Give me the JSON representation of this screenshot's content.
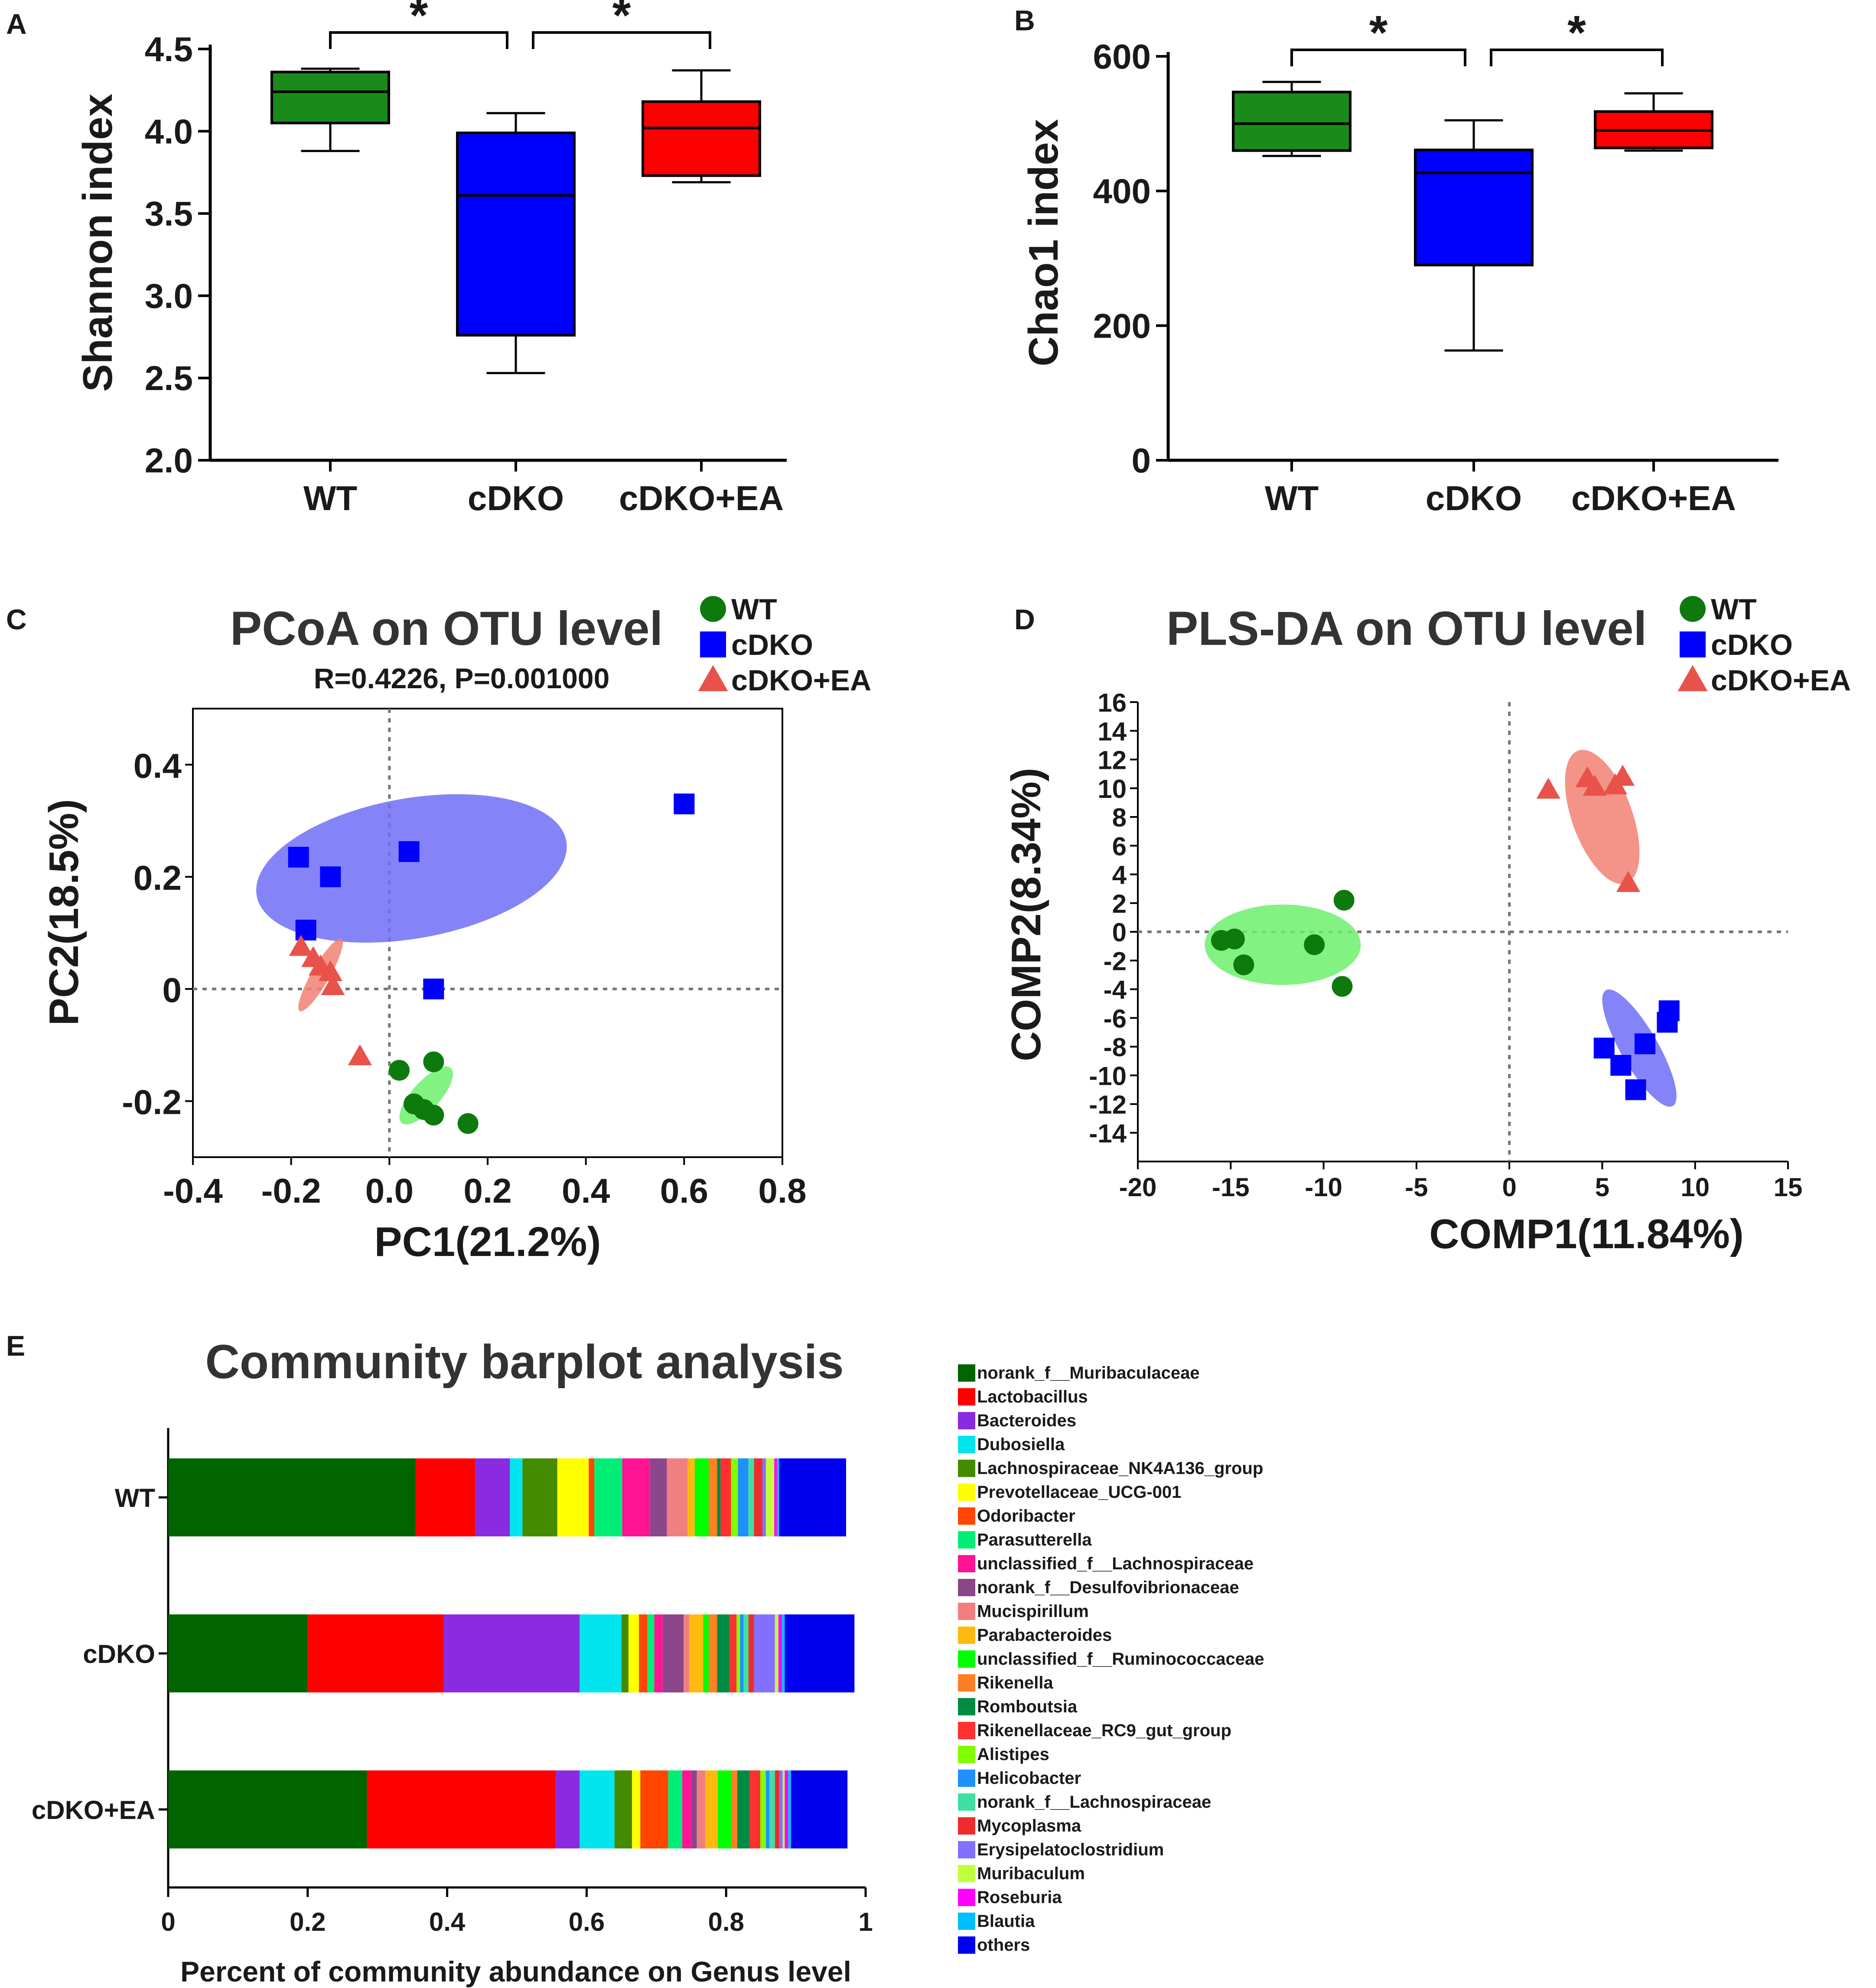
{
  "panels": [
    {
      "letter": "A"
    },
    {
      "letter": "B"
    },
    {
      "letter": "C"
    },
    {
      "letter": "D"
    },
    {
      "letter": "E"
    }
  ],
  "colors": {
    "wt": "#1a8a1a",
    "cdko": "#0000ff",
    "ea": "#ff0000",
    "ea_scatter": "#e8524a",
    "wt_dot": "#0e7a0e",
    "cdko_ellipse": "#6f6ff7",
    "wt_ellipse": "#6cf06c",
    "ea_ellipse": "#f28072"
  },
  "chart_data": [
    {
      "id": "A",
      "type": "box",
      "ylabel": "Shannon index",
      "ylim": [
        2.0,
        4.5
      ],
      "yticks": [
        "2.0",
        "2.5",
        "3.0",
        "3.5",
        "4.0",
        "4.5"
      ],
      "categories": [
        "WT",
        "cDKO",
        "cDKO+EA"
      ],
      "boxes": [
        {
          "name": "WT",
          "min": 3.88,
          "q1": 4.05,
          "median": 4.24,
          "q3": 4.36,
          "max": 4.38
        },
        {
          "name": "cDKO",
          "min": 2.53,
          "q1": 2.76,
          "median": 3.61,
          "q3": 3.99,
          "max": 4.11
        },
        {
          "name": "cDKO+EA",
          "min": 3.69,
          "q1": 3.73,
          "median": 4.02,
          "q3": 4.18,
          "max": 4.37
        }
      ],
      "significance": [
        {
          "from": "WT",
          "to": "cDKO",
          "label": "*"
        },
        {
          "from": "cDKO",
          "to": "cDKO+EA",
          "label": "*"
        }
      ]
    },
    {
      "id": "B",
      "type": "box",
      "ylabel": "Chao1 index",
      "ylim": [
        0,
        600
      ],
      "yticks": [
        "0",
        "200",
        "400",
        "600"
      ],
      "categories": [
        "WT",
        "cDKO",
        "cDKO+EA"
      ],
      "boxes": [
        {
          "name": "WT",
          "min": 452,
          "q1": 460,
          "median": 500,
          "q3": 547,
          "max": 562
        },
        {
          "name": "cDKO",
          "min": 163,
          "q1": 290,
          "median": 427,
          "q3": 461,
          "max": 505
        },
        {
          "name": "cDKO+EA",
          "min": 460,
          "q1": 464,
          "median": 490,
          "q3": 518,
          "max": 545
        }
      ],
      "significance": [
        {
          "from": "WT",
          "to": "cDKO",
          "label": "*"
        },
        {
          "from": "cDKO",
          "to": "cDKO+EA",
          "label": "*"
        }
      ]
    },
    {
      "id": "C",
      "type": "scatter",
      "title": "PCoA on OTU level",
      "subtitle": "R=0.4226, P=0.001000",
      "xlabel": "PC1(21.2%)",
      "ylabel": "PC2(18.5%)",
      "xlim": [
        -0.4,
        0.8
      ],
      "ylim": [
        -0.3,
        0.5
      ],
      "xticks": [
        "-0.4",
        "-0.2",
        "0.0",
        "0.2",
        "0.4",
        "0.6",
        "0.8"
      ],
      "yticks": [
        "-0.2",
        "0",
        "0.2",
        "0.4"
      ],
      "legend": [
        "WT",
        "cDKO",
        "cDKO+EA"
      ],
      "series": [
        {
          "name": "WT",
          "marker": "circle",
          "points": [
            [
              0.02,
              -0.145
            ],
            [
              0.09,
              -0.13
            ],
            [
              0.05,
              -0.205
            ],
            [
              0.07,
              -0.215
            ],
            [
              0.09,
              -0.225
            ],
            [
              0.16,
              -0.24
            ]
          ]
        },
        {
          "name": "cDKO",
          "marker": "square",
          "points": [
            [
              -0.185,
              0.235
            ],
            [
              -0.12,
              0.2
            ],
            [
              -0.17,
              0.105
            ],
            [
              0.04,
              0.245
            ],
            [
              0.09,
              0.0
            ],
            [
              0.6,
              0.33
            ]
          ]
        },
        {
          "name": "cDKO+EA",
          "marker": "triangle",
          "points": [
            [
              -0.18,
              0.075
            ],
            [
              -0.155,
              0.055
            ],
            [
              -0.14,
              0.04
            ],
            [
              -0.12,
              0.03
            ],
            [
              -0.115,
              0.005
            ],
            [
              -0.06,
              -0.12
            ]
          ]
        }
      ],
      "ellipses": [
        {
          "group": "cDKO",
          "cx": 0.045,
          "cy": 0.215,
          "rx": 0.32,
          "ry": 0.125,
          "angle": -10
        },
        {
          "group": "WT",
          "cx": 0.075,
          "cy": -0.19,
          "rx": 0.075,
          "ry": 0.025,
          "angle": -48
        },
        {
          "group": "cDKO+EA",
          "cx": -0.14,
          "cy": 0.025,
          "rx": 0.085,
          "ry": 0.016,
          "angle": -60
        }
      ]
    },
    {
      "id": "D",
      "type": "scatter",
      "title": "PLS-DA on OTU level",
      "xlabel": "COMP1(11.84%)",
      "ylabel": "COMP2(8.34%)",
      "xlim": [
        -20,
        15
      ],
      "ylim": [
        -16,
        16
      ],
      "xticks": [
        "-20",
        "-15",
        "-10",
        "-5",
        "0",
        "5",
        "10",
        "15"
      ],
      "yticks": [
        "-14",
        "-12",
        "-10",
        "-8",
        "-6",
        "-4",
        "-2",
        "0",
        "2",
        "4",
        "6",
        "8",
        "10",
        "12",
        "14",
        "16"
      ],
      "legend": [
        "WT",
        "cDKO",
        "cDKO+EA"
      ],
      "series": [
        {
          "name": "WT",
          "marker": "circle",
          "points": [
            [
              -15.5,
              -0.6
            ],
            [
              -14.8,
              -0.5
            ],
            [
              -14.3,
              -2.3
            ],
            [
              -10.5,
              -0.9
            ],
            [
              -8.9,
              2.2
            ],
            [
              -9.0,
              -3.8
            ]
          ]
        },
        {
          "name": "cDKO",
          "marker": "square",
          "points": [
            [
              5.1,
              -8.1
            ],
            [
              6.0,
              -9.3
            ],
            [
              6.8,
              -11.0
            ],
            [
              7.3,
              -7.8
            ],
            [
              8.5,
              -6.3
            ],
            [
              8.6,
              -5.5
            ]
          ]
        },
        {
          "name": "cDKO+EA",
          "marker": "triangle",
          "points": [
            [
              2.1,
              9.9
            ],
            [
              4.2,
              10.7
            ],
            [
              4.6,
              10.1
            ],
            [
              5.7,
              10.2
            ],
            [
              6.1,
              10.8
            ],
            [
              6.4,
              3.4
            ]
          ]
        }
      ],
      "ellipses": [
        {
          "group": "WT",
          "cx": -12.2,
          "cy": -0.9,
          "rx": 4.2,
          "ry": 2.8,
          "angle": 0
        },
        {
          "group": "cDKO+EA",
          "cx": 5.0,
          "cy": 8.0,
          "rx": 3.8,
          "ry": 2.1,
          "angle": 70
        },
        {
          "group": "cDKO",
          "cx": 7.0,
          "cy": -8.1,
          "rx": 3.6,
          "ry": 1.3,
          "angle": 60
        }
      ]
    },
    {
      "id": "E",
      "type": "stacked_bar_horizontal",
      "title": "Community barplot analysis",
      "xlabel": "Percent of community abundance on Genus level",
      "xlim": [
        0,
        1
      ],
      "xticks": [
        "0",
        "0.2",
        "0.4",
        "0.6",
        "0.8",
        "1"
      ],
      "categories": [
        "WT",
        "cDKO",
        "cDKO+EA"
      ],
      "series": [
        {
          "name": "norank_f__Muribaculaceae",
          "color": "#006400",
          "values": [
            0.355,
            0.2,
            0.285
          ]
        },
        {
          "name": "Lactobacillus",
          "color": "#ff0000",
          "values": [
            0.085,
            0.195,
            0.27
          ]
        },
        {
          "name": "Bacteroides",
          "color": "#8a2be2",
          "values": [
            0.05,
            0.195,
            0.035
          ]
        },
        {
          "name": "Dubosiella",
          "color": "#00e5ee",
          "values": [
            0.018,
            0.06,
            0.05
          ]
        },
        {
          "name": "Lachnospiraceae_NK4A136_group",
          "color": "#458b00",
          "values": [
            0.05,
            0.01,
            0.025
          ]
        },
        {
          "name": "Prevotellaceae_UCG-001",
          "color": "#ffff00",
          "values": [
            0.045,
            0.015,
            0.012
          ]
        },
        {
          "name": "Odoribacter",
          "color": "#ff4500",
          "values": [
            0.008,
            0.012,
            0.04
          ]
        },
        {
          "name": "Parasutterella",
          "color": "#00ee76",
          "values": [
            0.04,
            0.01,
            0.02
          ]
        },
        {
          "name": "unclassified_f__Lachnospiraceae",
          "color": "#ff1493",
          "values": [
            0.04,
            0.012,
            0.013
          ]
        },
        {
          "name": "norank_f__Desulfovibrionaceae",
          "color": "#8b4789",
          "values": [
            0.024,
            0.03,
            0.008
          ]
        },
        {
          "name": "Mucispirillum",
          "color": "#f08080",
          "values": [
            0.03,
            0.008,
            0.012
          ]
        },
        {
          "name": "Parabacteroides",
          "color": "#ffb90f",
          "values": [
            0.01,
            0.02,
            0.018
          ]
        },
        {
          "name": "unclassified_f__Ruminococcaceae",
          "color": "#00ff00",
          "values": [
            0.02,
            0.008,
            0.02
          ]
        },
        {
          "name": "Rikenella",
          "color": "#ff7f24",
          "values": [
            0.012,
            0.012,
            0.008
          ]
        },
        {
          "name": "Romboutsia",
          "color": "#008b45",
          "values": [
            0.005,
            0.018,
            0.018
          ]
        },
        {
          "name": "Rikenellaceae_RC9_gut_group",
          "color": "#ff3030",
          "values": [
            0.015,
            0.01,
            0.015
          ]
        },
        {
          "name": "Alistipes",
          "color": "#7fff00",
          "values": [
            0.01,
            0.005,
            0.008
          ]
        },
        {
          "name": "Helicobacter",
          "color": "#1e90ff",
          "values": [
            0.015,
            0.005,
            0.005
          ]
        },
        {
          "name": "norank_f__Lachnospiraceae",
          "color": "#40e0a0",
          "values": [
            0.008,
            0.007,
            0.008
          ]
        },
        {
          "name": "Mycoplasma",
          "color": "#ee2c2c",
          "values": [
            0.012,
            0.008,
            0.006
          ]
        },
        {
          "name": "Erysipelatoclostridium",
          "color": "#8470ff",
          "values": [
            0.005,
            0.03,
            0.005
          ]
        },
        {
          "name": "Muribaculum",
          "color": "#c0ff3e",
          "values": [
            0.012,
            0.005,
            0.003
          ]
        },
        {
          "name": "Roseburia",
          "color": "#ff00ff",
          "values": [
            0.004,
            0.005,
            0.005
          ]
        },
        {
          "name": "Blautia",
          "color": "#00bfff",
          "values": [
            0.003,
            0.004,
            0.004
          ]
        },
        {
          "name": "others",
          "color": "#0000ee",
          "values": [
            0.096,
            0.1,
            0.081
          ]
        }
      ]
    }
  ]
}
